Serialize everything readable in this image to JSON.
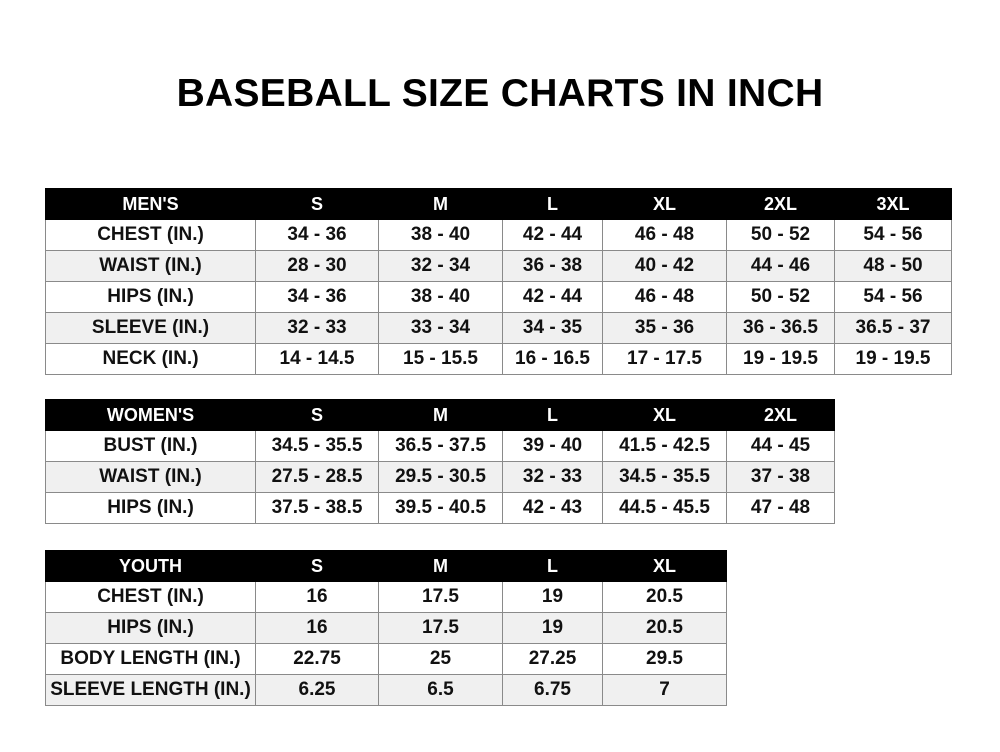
{
  "title": "BASEBALL SIZE CHARTS IN INCH",
  "tables": [
    {
      "id": "mens",
      "header": [
        "MEN'S",
        "S",
        "M",
        "L",
        "XL",
        "2XL",
        "3XL"
      ],
      "rows": [
        [
          "CHEST (IN.)",
          "34 - 36",
          "38 - 40",
          "42 - 44",
          "46 - 48",
          "50 - 52",
          "54 - 56"
        ],
        [
          "WAIST (IN.)",
          "28 - 30",
          "32 - 34",
          "36 - 38",
          "40 - 42",
          "44 - 46",
          "48 - 50"
        ],
        [
          "HIPS (IN.)",
          "34 - 36",
          "38 - 40",
          "42 - 44",
          "46 - 48",
          "50 - 52",
          "54 - 56"
        ],
        [
          "SLEEVE (IN.)",
          "32 - 33",
          "33 - 34",
          "34 - 35",
          "35 - 36",
          "36 - 36.5",
          "36.5 - 37"
        ],
        [
          "NECK (IN.)",
          "14 - 14.5",
          "15 - 15.5",
          "16 - 16.5",
          "17 - 17.5",
          "19 - 19.5",
          "19 - 19.5"
        ]
      ]
    },
    {
      "id": "womens",
      "header": [
        "WOMEN'S",
        "S",
        "M",
        "L",
        "XL",
        "2XL"
      ],
      "rows": [
        [
          "BUST (IN.)",
          "34.5 - 35.5",
          "36.5 - 37.5",
          "39 - 40",
          "41.5 - 42.5",
          "44 - 45"
        ],
        [
          "WAIST (IN.)",
          "27.5 - 28.5",
          "29.5 - 30.5",
          "32 - 33",
          "34.5 - 35.5",
          "37 - 38"
        ],
        [
          "HIPS (IN.)",
          "37.5 - 38.5",
          "39.5 - 40.5",
          "42 - 43",
          "44.5 - 45.5",
          "47 - 48"
        ]
      ]
    },
    {
      "id": "youth",
      "header": [
        "YOUTH",
        "S",
        "M",
        "L",
        "XL"
      ],
      "rows": [
        [
          "CHEST (IN.)",
          "16",
          "17.5",
          "19",
          "20.5"
        ],
        [
          "HIPS (IN.)",
          "16",
          "17.5",
          "19",
          "20.5"
        ],
        [
          "BODY LENGTH (IN.)",
          "22.75",
          "25",
          "27.25",
          "29.5"
        ],
        [
          "SLEEVE LENGTH (IN.)",
          "6.25",
          "6.5",
          "6.75",
          "7"
        ]
      ]
    }
  ]
}
